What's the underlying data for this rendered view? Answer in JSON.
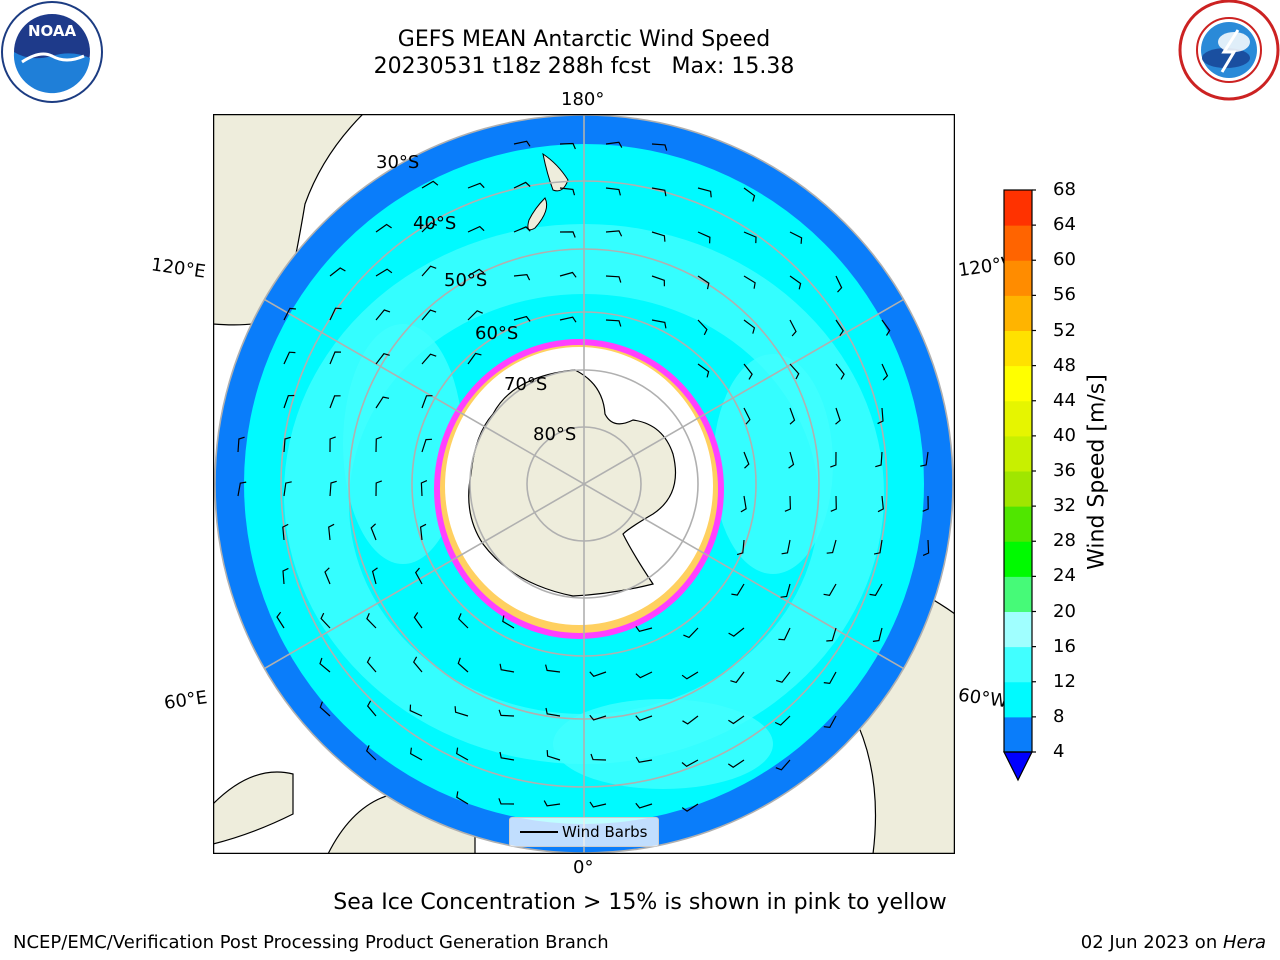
{
  "title": {
    "line1": "GEFS MEAN Antarctic Wind Speed",
    "line2": "20230531 t18z 288h fcst   Max: 15.38"
  },
  "logos": {
    "left": {
      "name": "NOAA",
      "text": "NOAA",
      "ring_text": "NATIONAL OCEANIC AND ATMOSPHERIC ADMINISTRATION · U.S. DEPARTMENT OF COMMERCE"
    },
    "right": {
      "name": "National Weather Service",
      "ring_text": "NATIONAL WEATHER SERVICE"
    }
  },
  "map": {
    "longitude_labels": [
      "180°",
      "120°E",
      "120°W",
      "60°E",
      "60°W",
      "0°"
    ],
    "latitude_labels": [
      "30°S",
      "40°S",
      "50°S",
      "60°S",
      "70°S",
      "80°S"
    ],
    "legend_label": "Wind Barbs"
  },
  "colorbar": {
    "label": "Wind Speed [m/s]",
    "ticks": [
      "4",
      "8",
      "12",
      "16",
      "20",
      "24",
      "28",
      "32",
      "36",
      "40",
      "44",
      "48",
      "52",
      "56",
      "60",
      "64",
      "68"
    ],
    "colors": [
      "#0a7dfa",
      "#00faff",
      "#41ffff",
      "#a0ffff",
      "#46fa78",
      "#00fa00",
      "#50e600",
      "#a0e600",
      "#c8f000",
      "#e6f500",
      "#ffff00",
      "#ffe100",
      "#ffb400",
      "#ff8c00",
      "#ff6400",
      "#ff3200"
    ],
    "extend_color": "#0000ff"
  },
  "caption": "Sea Ice Concentration > 15% is shown in pink to yellow",
  "footer": {
    "left": "NCEP/EMC/Verification Post Processing Product Generation Branch",
    "right_date": "02 Jun 2023 on ",
    "right_host": "Hera"
  }
}
